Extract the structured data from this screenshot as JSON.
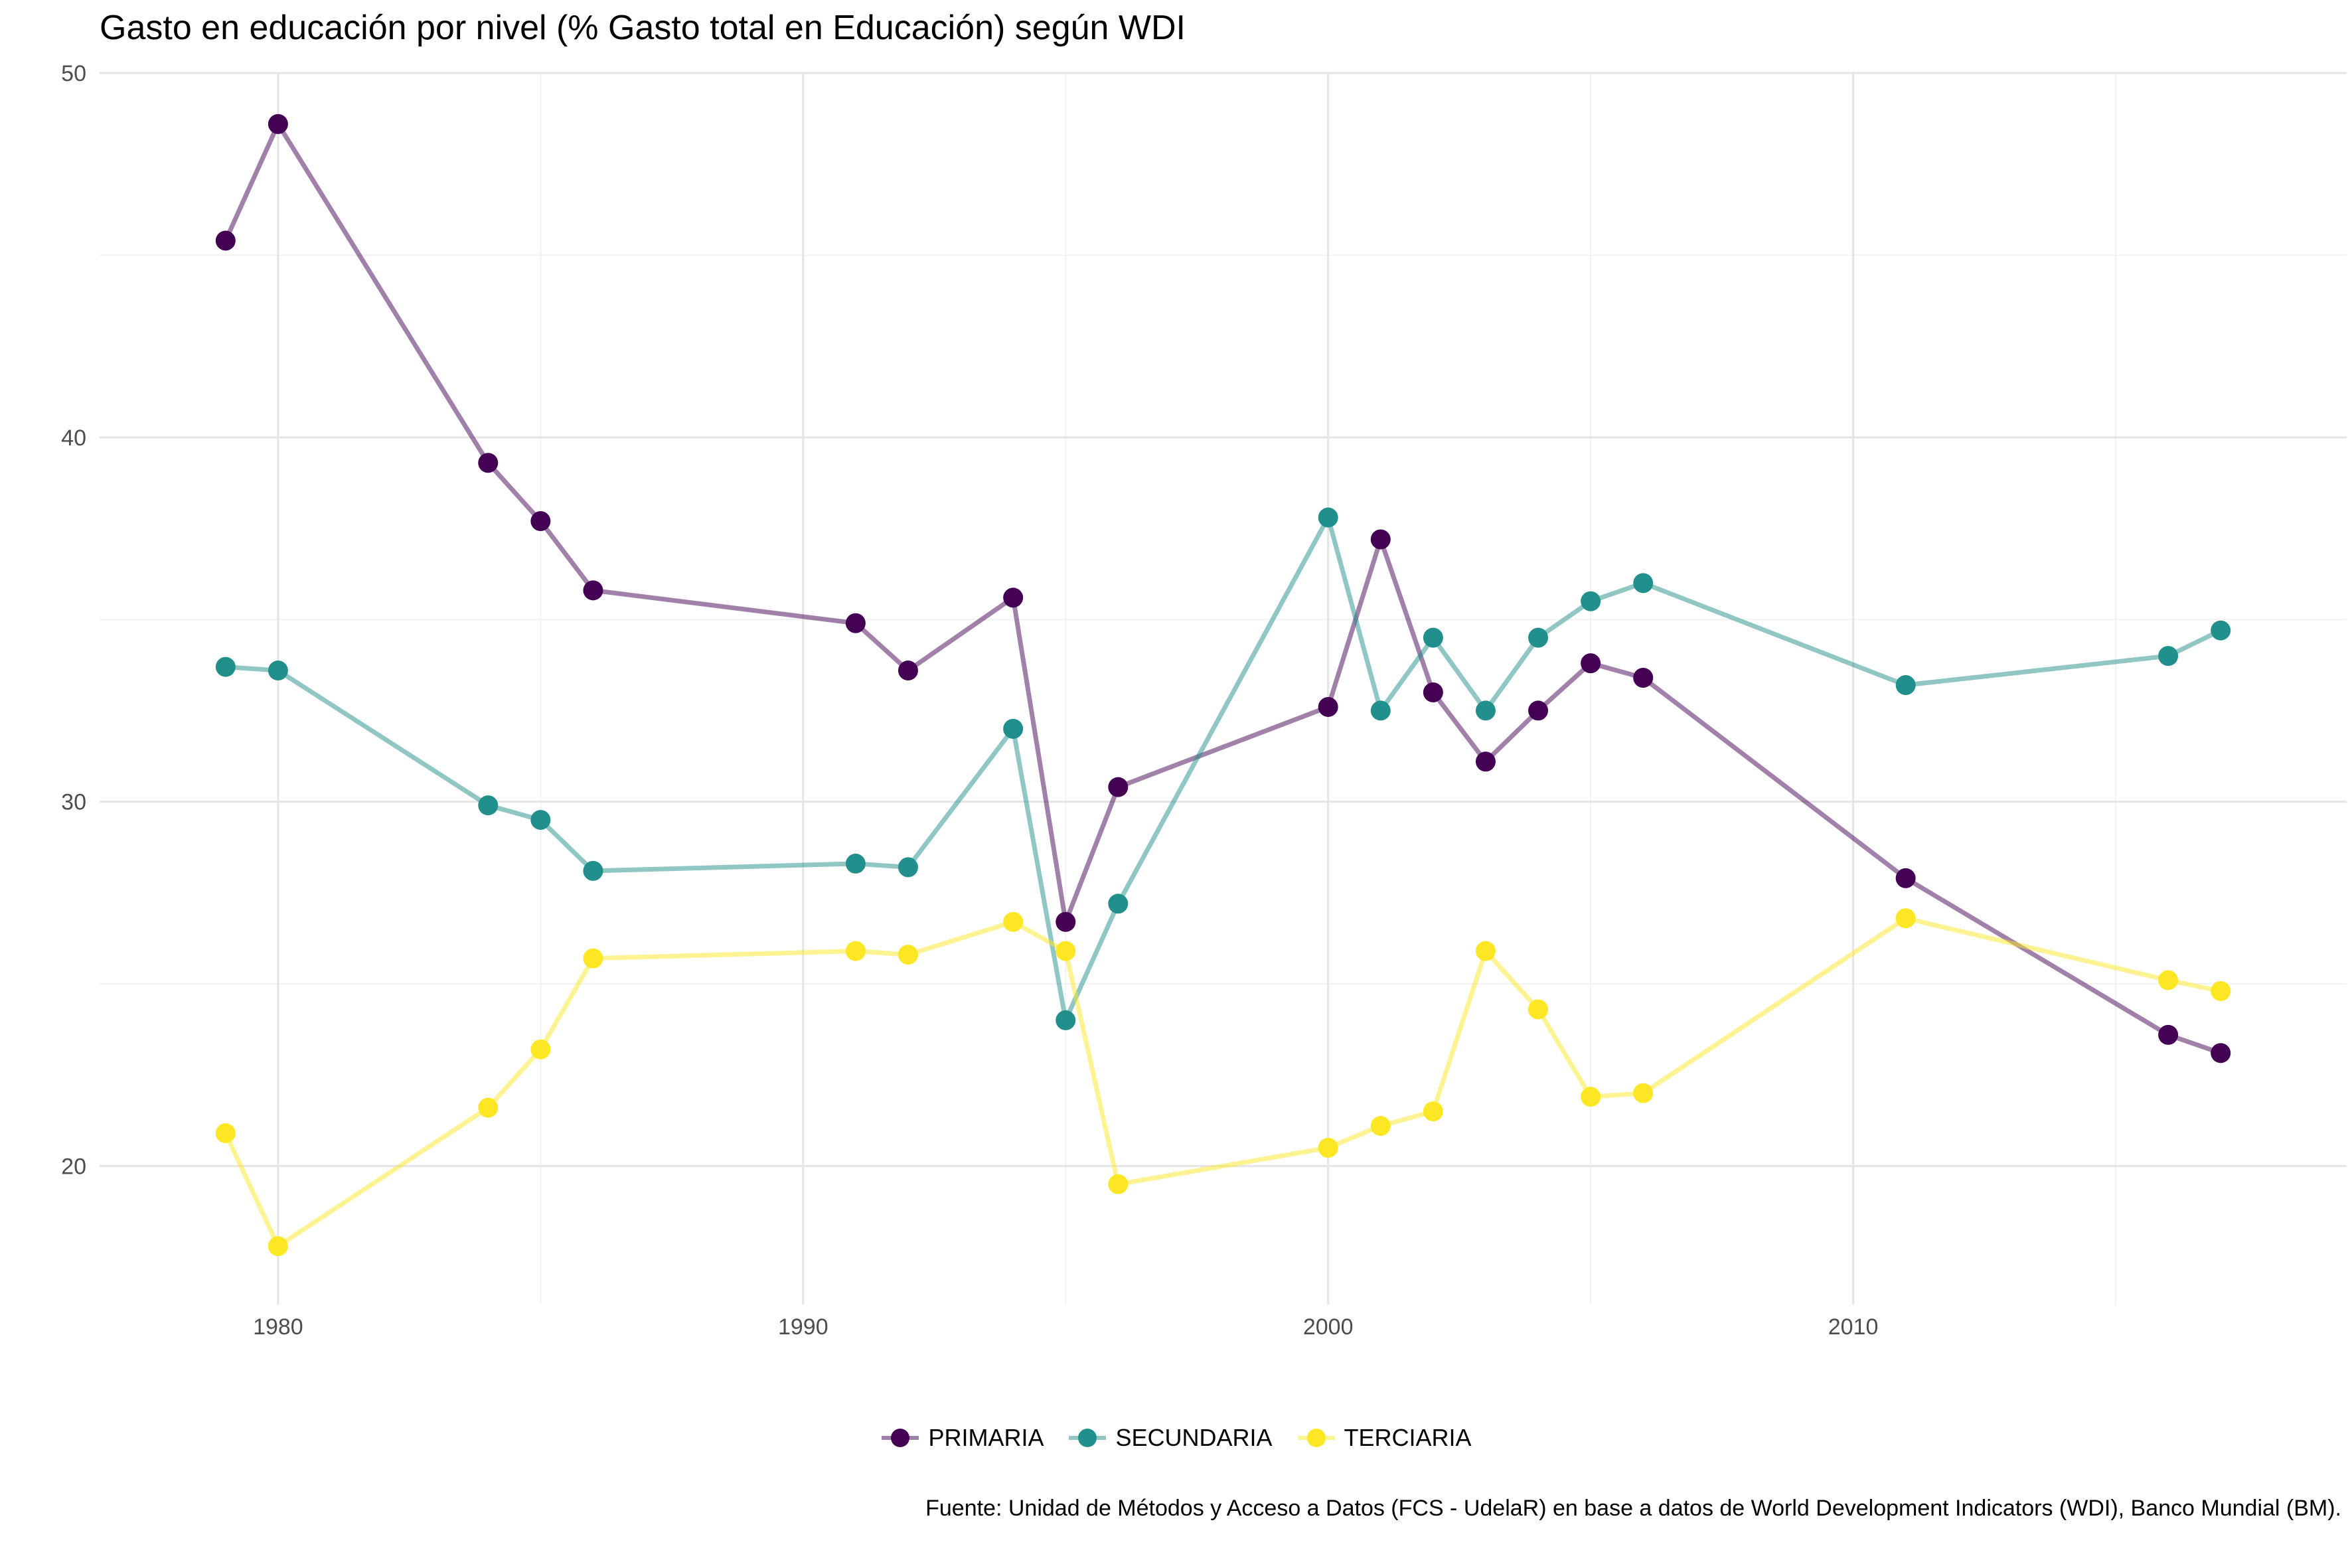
{
  "chart_data": {
    "type": "line",
    "title": "Gasto en educación por nivel (% Gasto total en Educación) según WDI",
    "xlabel": "",
    "ylabel": "",
    "xlim": [
      1976.6,
      2019.4
    ],
    "ylim": [
      16.2,
      50
    ],
    "x_ticks": [
      "1980",
      "1990",
      "2000",
      "2010"
    ],
    "y_ticks": [
      "20",
      "30",
      "40",
      "50"
    ],
    "grid": true,
    "legend_position": "bottom",
    "series": [
      {
        "name": "PRIMARIA",
        "color": "#440154",
        "x": [
          1979,
          1980,
          1984,
          1985,
          1986,
          1991,
          1992,
          1994,
          1995,
          1996,
          2000,
          2001,
          2002,
          2003,
          2004,
          2005,
          2006,
          2011,
          2016,
          2017
        ],
        "values": [
          45.4,
          48.6,
          39.3,
          37.7,
          35.8,
          34.9,
          33.6,
          35.6,
          26.7,
          30.4,
          32.6,
          37.2,
          33.0,
          31.1,
          32.5,
          33.8,
          33.4,
          27.9,
          23.6,
          23.1
        ]
      },
      {
        "name": "SECUNDARIA",
        "color": "#21908C",
        "x": [
          1979,
          1980,
          1984,
          1985,
          1986,
          1991,
          1992,
          1994,
          1995,
          1996,
          2000,
          2001,
          2002,
          2003,
          2004,
          2005,
          2006,
          2011,
          2016,
          2017
        ],
        "values": [
          33.7,
          33.6,
          29.9,
          29.5,
          28.1,
          28.3,
          28.2,
          32.0,
          24.0,
          27.2,
          37.8,
          32.5,
          34.5,
          32.5,
          34.5,
          35.5,
          36.0,
          33.2,
          34.0,
          34.7
        ]
      },
      {
        "name": "TERCIARIA",
        "color": "#FDE725",
        "x": [
          1979,
          1980,
          1984,
          1985,
          1986,
          1991,
          1992,
          1994,
          1995,
          1996,
          2000,
          2001,
          2002,
          2003,
          2004,
          2005,
          2006,
          2011,
          2016,
          2017
        ],
        "values": [
          20.9,
          17.8,
          21.6,
          23.2,
          25.7,
          25.9,
          25.8,
          26.7,
          25.9,
          19.5,
          20.5,
          21.1,
          21.5,
          25.9,
          24.3,
          21.9,
          22.0,
          26.8,
          25.1,
          24.8
        ]
      }
    ],
    "caption": "Fuente: Unidad de Métodos y Acceso a Datos (FCS - UdelaR) en base a datos de World Development Indicators (WDI), Banco Mundial (BM)."
  }
}
